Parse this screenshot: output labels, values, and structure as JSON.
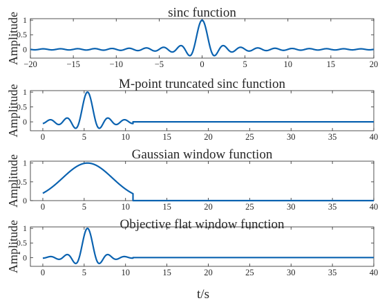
{
  "figure": {
    "xlabel": "t/s",
    "line_color": "#0a62b0"
  },
  "chart_data": [
    {
      "type": "line",
      "title": "sinc function",
      "ylabel": "Amplitude",
      "xlabel": "",
      "xlim": [
        -20,
        20
      ],
      "ylim": [
        -0.3,
        1.05
      ],
      "xticks": [
        -20,
        -15,
        -10,
        -5,
        0,
        5,
        10,
        15,
        20
      ],
      "xtick_labels": [
        "−20",
        "−15",
        "−10",
        "−5",
        "0",
        "5",
        "10",
        "15",
        "20"
      ],
      "yticks": [
        0,
        0.5,
        1
      ],
      "ytick_labels": [
        "0",
        "0.5",
        "1"
      ],
      "grid": false,
      "series": [
        {
          "function": "sinc",
          "center": 0,
          "x_range": [
            -20,
            20
          ],
          "peak": 1
        }
      ]
    },
    {
      "type": "line",
      "title": "M-point truncated sinc function",
      "ylabel": "Amplitude",
      "xlabel": "",
      "xlim": [
        -1.5,
        40
      ],
      "ylim": [
        -0.3,
        1.05
      ],
      "xticks": [
        0,
        5,
        10,
        15,
        20,
        25,
        30,
        35,
        40
      ],
      "xtick_labels": [
        "0",
        "5",
        "10",
        "15",
        "20",
        "25",
        "30",
        "35",
        "40"
      ],
      "yticks": [
        0,
        0.5,
        1
      ],
      "ytick_labels": [
        "0",
        "0.5",
        "1"
      ],
      "grid": false,
      "series": [
        {
          "function": "truncated_sinc",
          "center": 5.4,
          "support": [
            0,
            10.9
          ],
          "peak": 1,
          "zero_after": 10.9
        }
      ]
    },
    {
      "type": "line",
      "title": "Gaussian window function",
      "ylabel": "Amplitude",
      "xlabel": "",
      "xlim": [
        -1.5,
        40
      ],
      "ylim": [
        0,
        1.05
      ],
      "xticks": [
        0,
        5,
        10,
        15,
        20,
        25,
        30,
        35,
        40
      ],
      "xtick_labels": [
        "0",
        "5",
        "10",
        "15",
        "20",
        "25",
        "30",
        "35",
        "40"
      ],
      "yticks": [
        0,
        0.5,
        1
      ],
      "ytick_labels": [
        "0",
        "0.5",
        "1"
      ],
      "grid": false,
      "series": [
        {
          "function": "gaussian",
          "center": 5.4,
          "support": [
            0,
            10.9
          ],
          "peak": 1,
          "start_value": 0.19,
          "end_value": 0.19,
          "zero_after": 10.9
        }
      ]
    },
    {
      "type": "line",
      "title": "Objective flat window function",
      "ylabel": "Amplitude",
      "xlabel": "t/s",
      "xlim": [
        -1.5,
        40
      ],
      "ylim": [
        -0.3,
        1.05
      ],
      "xticks": [
        0,
        5,
        10,
        15,
        20,
        25,
        30,
        35,
        40
      ],
      "xtick_labels": [
        "0",
        "5",
        "10",
        "15",
        "20",
        "25",
        "30",
        "35",
        "40"
      ],
      "yticks": [
        0,
        0.5,
        1
      ],
      "ytick_labels": [
        "0",
        "0.5",
        "1"
      ],
      "grid": false,
      "series": [
        {
          "function": "windowed_sinc",
          "center": 5.4,
          "support": [
            0,
            10.9
          ],
          "peak": 1,
          "zero_after": 10.9
        }
      ]
    }
  ]
}
